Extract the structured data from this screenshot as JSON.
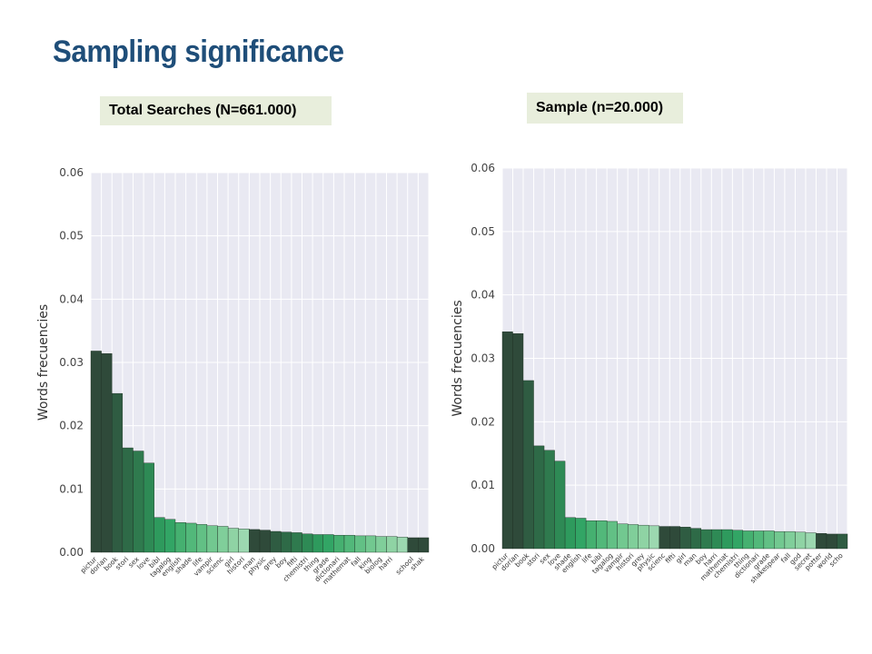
{
  "slide": {
    "title": "Sampling significance"
  },
  "chart_data": [
    {
      "type": "bar",
      "label": "Total Searches (N=661.000)",
      "ylabel": "Words frecuencies",
      "ylim": [
        0,
        0.06
      ],
      "yticks": [
        "0.00",
        "0.01",
        "0.02",
        "0.03",
        "0.04",
        "0.05",
        "0.06"
      ],
      "grid": true,
      "categories": [
        "pictur",
        "dorian",
        "book",
        "stori",
        "sex",
        "love",
        "bibl",
        "tagalog",
        "english",
        "shade",
        "life",
        "vampir",
        "scienc",
        "girl",
        "histori",
        "man",
        "physic",
        "grey",
        "boy",
        "fifti",
        "chemistri",
        "thing",
        "grade",
        "dictionari",
        "mathemat",
        "fall",
        "king",
        "biolog",
        "harri",
        "",
        "school",
        "shak"
      ],
      "values": [
        0.0318,
        0.0314,
        0.0251,
        0.0165,
        0.016,
        0.0141,
        0.0055,
        0.0052,
        0.0047,
        0.0046,
        0.0044,
        0.0042,
        0.0041,
        0.0038,
        0.0037,
        0.0036,
        0.0035,
        0.0033,
        0.0032,
        0.0031,
        0.0029,
        0.0028,
        0.0028,
        0.0027,
        0.0027,
        0.0026,
        0.0026,
        0.0025,
        0.0025,
        0.0024,
        0.0023,
        0.0023
      ],
      "colors": [
        "#2f4a3a",
        "#2f4a3a",
        "#2f5c42",
        "#2e6a47",
        "#2f7a4e",
        "#2e8a55",
        "#2e9a5d",
        "#32a565",
        "#45b070",
        "#52b87a",
        "#62c085",
        "#72c890",
        "#80ce9a",
        "#8fd3a4",
        "#9cd8b0",
        "#2f4a3a",
        "#2f4a3a",
        "#2f5c42",
        "#2e6a47",
        "#2f7a4e",
        "#2e8a55",
        "#2e9a5d",
        "#32a565",
        "#45b070",
        "#52b87a",
        "#62c085",
        "#72c890",
        "#80ce9a",
        "#8fd3a4",
        "#9cd8b0",
        "#2f4a3a",
        "#2f4a3a"
      ]
    },
    {
      "type": "bar",
      "label": "Sample (n=20.000)",
      "ylabel": "Words frecuencies",
      "ylim": [
        0,
        0.06
      ],
      "yticks": [
        "0.00",
        "0.01",
        "0.02",
        "0.03",
        "0.04",
        "0.05",
        "0.06"
      ],
      "grid": true,
      "categories": [
        "pictur",
        "dorian",
        "book",
        "stori",
        "sex",
        "love",
        "shade",
        "english",
        "life",
        "bibl",
        "tagalog",
        "vampir",
        "histori",
        "grey",
        "physic",
        "scienc",
        "fifti",
        "girl",
        "man",
        "boy",
        "harri",
        "mathemat",
        "chemistri",
        "thing",
        "dictionari",
        "grade",
        "shakespear",
        "fall",
        "god",
        "secret",
        "potter",
        "world",
        "scho"
      ],
      "values": [
        0.0342,
        0.0339,
        0.0265,
        0.0162,
        0.0155,
        0.0138,
        0.0049,
        0.0048,
        0.0044,
        0.0044,
        0.0043,
        0.0039,
        0.0038,
        0.0037,
        0.0036,
        0.0035,
        0.0035,
        0.0034,
        0.0032,
        0.003,
        0.003,
        0.003,
        0.0029,
        0.0028,
        0.0028,
        0.0028,
        0.0027,
        0.0027,
        0.0026,
        0.0025,
        0.0024,
        0.0023,
        0.0023
      ],
      "colors": [
        "#2f4a3a",
        "#2f4a3a",
        "#2f5c42",
        "#2e6a47",
        "#2f7a4e",
        "#2e8a55",
        "#2e9a5d",
        "#32a565",
        "#45b070",
        "#52b87a",
        "#62c085",
        "#72c890",
        "#80ce9a",
        "#8fd3a4",
        "#9cd8b0",
        "#2f4a3a",
        "#2f4a3a",
        "#2f5c42",
        "#2e6a47",
        "#2f7a4e",
        "#2e8a55",
        "#2e9a5d",
        "#32a565",
        "#45b070",
        "#52b87a",
        "#62c085",
        "#72c890",
        "#80ce9a",
        "#8fd3a4",
        "#9cd8b0",
        "#2f4a3a",
        "#2f4a3a",
        "#2f5c42"
      ]
    }
  ]
}
